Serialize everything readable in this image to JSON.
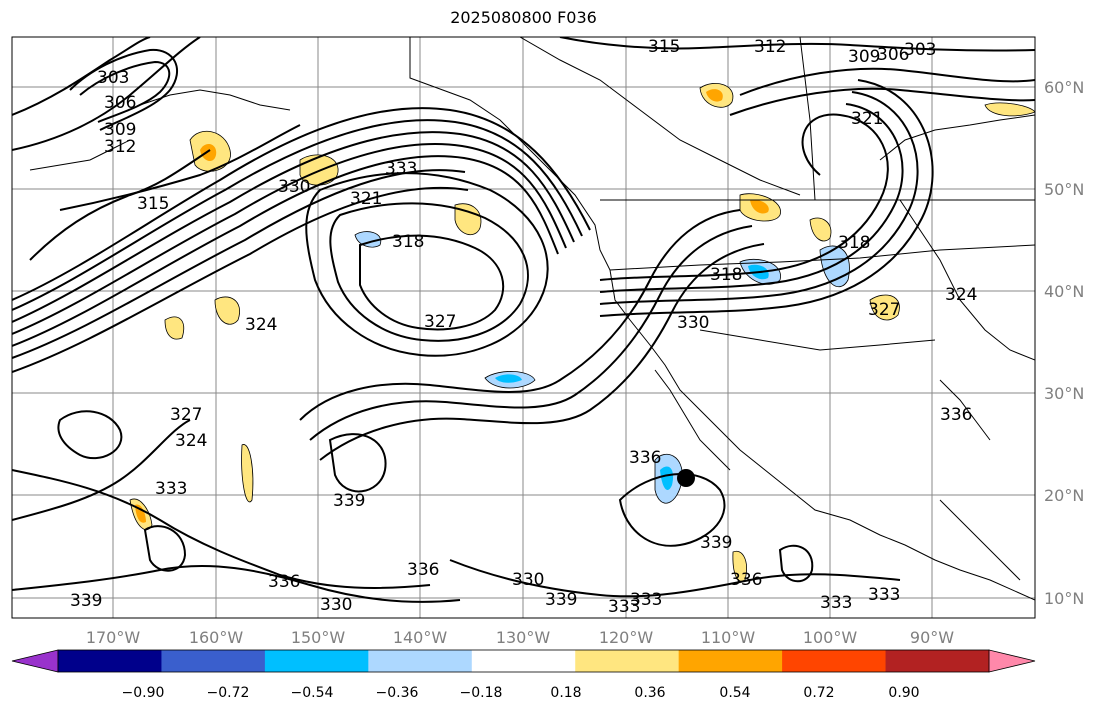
{
  "title": "2025080800 F036",
  "map": {
    "lon_ticks": [
      "170°W",
      "160°W",
      "150°W",
      "140°W",
      "130°W",
      "120°W",
      "110°W",
      "100°W",
      "90°W"
    ],
    "lat_ticks": [
      "60°N",
      "50°N",
      "40°N",
      "30°N",
      "20°N",
      "10°N"
    ],
    "contour_color": "#000000",
    "grid_color": "#888888",
    "contour_labels": [
      "303",
      "306",
      "309",
      "312",
      "315",
      "318",
      "321",
      "324",
      "327",
      "330",
      "333",
      "336",
      "339",
      "315",
      "312",
      "309",
      "306",
      "303",
      "321",
      "318",
      "330",
      "336",
      "333",
      "339",
      "327",
      "324",
      "333",
      "336",
      "330",
      "333",
      "339",
      "330",
      "339",
      "336",
      "333",
      "333",
      "336",
      "324",
      "327",
      "318"
    ],
    "marker": "storm-center"
  },
  "colorbar": {
    "ticks": [
      "−0.90",
      "−0.72",
      "−0.54",
      "−0.36",
      "−0.18",
      "0.18",
      "0.36",
      "0.54",
      "0.72",
      "0.90"
    ],
    "colors": [
      "#9932cc",
      "#00008b",
      "#3a5fcd",
      "#00bfff",
      "#add8ff",
      "#ffffff",
      "#ffe680",
      "#ffa500",
      "#ff4500",
      "#b22222",
      "#ff88aa"
    ]
  }
}
